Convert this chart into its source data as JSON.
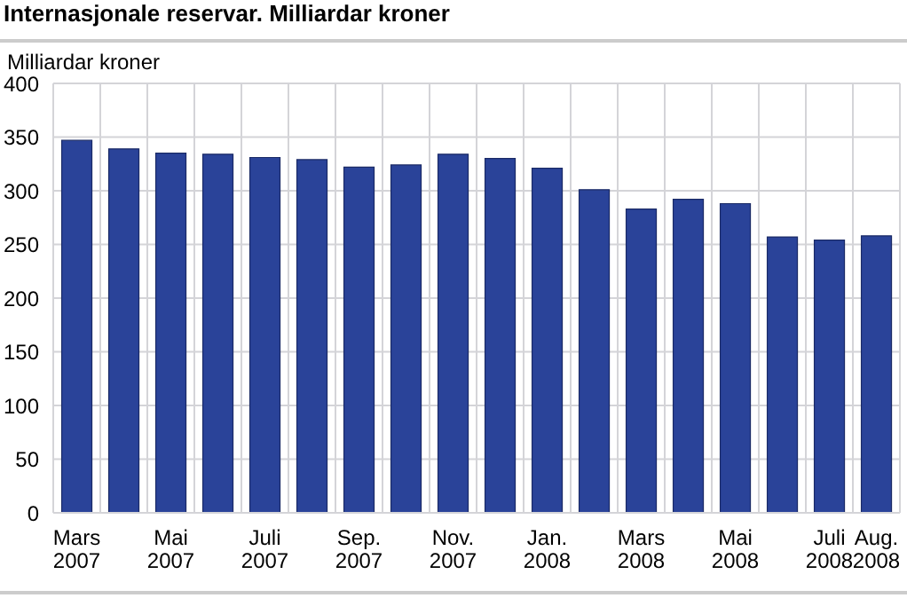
{
  "chart_data": {
    "type": "bar",
    "title": "Internasjonale reservar. Milliardar kroner",
    "ylabel": "Milliardar kroner",
    "categories": [
      "Mars 2007",
      null,
      "Mai 2007",
      null,
      "Juli 2007",
      null,
      "Sep. 2007",
      null,
      "Nov. 2007",
      null,
      "Jan. 2008",
      null,
      "Mars 2008",
      null,
      "Mai 2008",
      null,
      "Juli 2008",
      "Aug. 2008"
    ],
    "values": [
      347,
      339,
      335,
      334,
      331,
      329,
      322,
      324,
      334,
      330,
      321,
      301,
      283,
      292,
      288,
      257,
      254,
      258
    ],
    "color": "#2a4399",
    "ylim": [
      0,
      400
    ],
    "yticks": [
      0,
      50,
      100,
      150,
      200,
      250,
      300,
      350,
      400
    ],
    "grid": true
  }
}
